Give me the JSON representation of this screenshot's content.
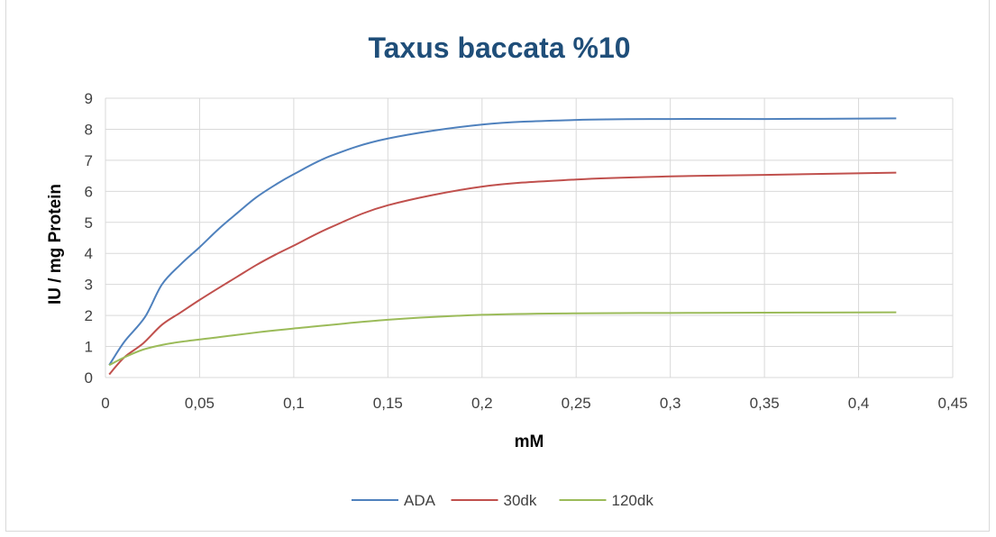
{
  "chart_data": {
    "type": "line",
    "title": "Taxus baccata %10",
    "xlabel": "mM",
    "ylabel": "IU / mg  Protein",
    "xlim": [
      0,
      0.45
    ],
    "ylim": [
      0,
      9
    ],
    "x_ticks": [
      "0",
      "0,05",
      "0,1",
      "0,15",
      "0,2",
      "0,25",
      "0,3",
      "0,35",
      "0,4",
      "0,45"
    ],
    "y_ticks": [
      "0",
      "1",
      "2",
      "3",
      "4",
      "5",
      "6",
      "7",
      "8",
      "9"
    ],
    "grid": true,
    "legend_position": "bottom",
    "series": [
      {
        "name": "ADA",
        "color": "#4f81bd",
        "x": [
          0.002,
          0.01,
          0.021,
          0.03,
          0.04,
          0.05,
          0.06,
          0.07,
          0.08,
          0.09,
          0.1,
          0.12,
          0.15,
          0.2,
          0.25,
          0.3,
          0.35,
          0.42
        ],
        "y": [
          0.4,
          1.15,
          1.95,
          3.0,
          3.65,
          4.2,
          4.78,
          5.3,
          5.8,
          6.2,
          6.55,
          7.15,
          7.7,
          8.15,
          8.3,
          8.33,
          8.33,
          8.35
        ]
      },
      {
        "name": "30dk",
        "color": "#c0504d",
        "x": [
          0.002,
          0.01,
          0.02,
          0.03,
          0.04,
          0.05,
          0.06,
          0.07,
          0.08,
          0.09,
          0.1,
          0.12,
          0.15,
          0.2,
          0.25,
          0.3,
          0.35,
          0.42
        ],
        "y": [
          0.1,
          0.65,
          1.1,
          1.7,
          2.1,
          2.5,
          2.88,
          3.25,
          3.62,
          3.95,
          4.25,
          4.85,
          5.55,
          6.15,
          6.38,
          6.48,
          6.53,
          6.6
        ]
      },
      {
        "name": "120dk",
        "color": "#9bbb59",
        "x": [
          0.002,
          0.01,
          0.02,
          0.03,
          0.04,
          0.06,
          0.08,
          0.1,
          0.15,
          0.2,
          0.25,
          0.3,
          0.35,
          0.42
        ],
        "y": [
          0.4,
          0.65,
          0.9,
          1.05,
          1.15,
          1.3,
          1.45,
          1.58,
          1.86,
          2.02,
          2.07,
          2.08,
          2.09,
          2.1
        ]
      }
    ]
  }
}
